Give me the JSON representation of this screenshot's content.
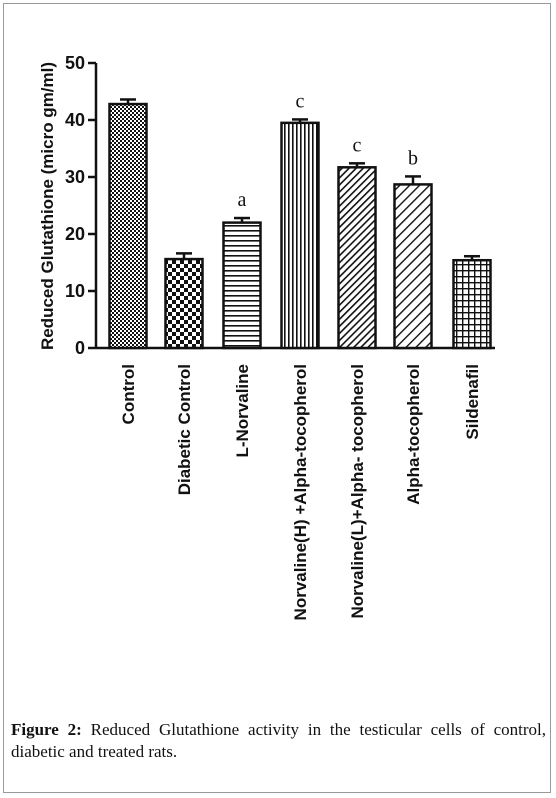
{
  "chart_data": {
    "type": "bar",
    "ylabel": "Reduced Glutathione (micro gm/ml)",
    "ylim": [
      0,
      50
    ],
    "yticks": [
      0,
      10,
      20,
      30,
      40,
      50
    ],
    "categories": [
      "Control",
      "Diabetic Control",
      "L-Norvaline",
      "Norvaline(H) +Alpha-tocopherol",
      "Norvaline(L)+Alpha- tocopherol",
      "Alpha-tocopherol",
      "Sildenafil"
    ],
    "values": [
      42.8,
      15.6,
      22.0,
      39.5,
      31.7,
      28.7,
      15.4
    ],
    "errors": [
      0.8,
      1.0,
      0.8,
      0.6,
      0.7,
      1.4,
      0.7
    ],
    "significance": [
      "",
      "",
      "a",
      "c",
      "c",
      "b",
      ""
    ],
    "patterns": [
      "crosshatch-dense",
      "checker",
      "horizontal-lines",
      "vertical-lines",
      "diagonal-dense",
      "diagonal-sparse",
      "grid"
    ],
    "grid": false,
    "legend": "none"
  },
  "caption": {
    "label": "Figure 2:",
    "text": "Reduced Glutathione activity in the testicular cells of control, diabetic and treated rats."
  }
}
